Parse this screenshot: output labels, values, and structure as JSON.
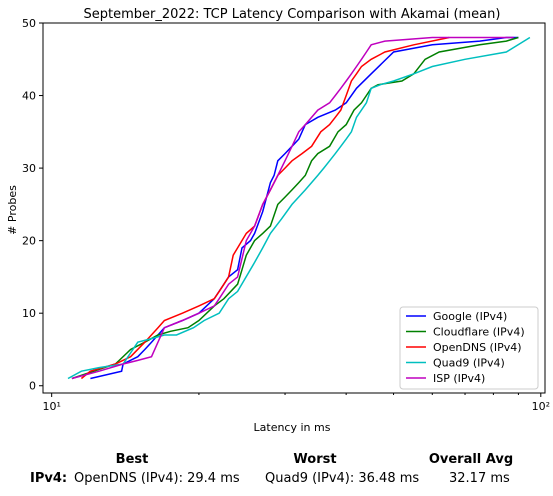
{
  "chart_data": {
    "type": "line",
    "title": "September_2022: TCP Latency Comparison with Akamai (mean)",
    "xlabel": "Latency in ms",
    "ylabel": "# Probes",
    "xscale": "log",
    "xlim": [
      9.6,
      102
    ],
    "ylim": [
      -1,
      50
    ],
    "xticks": [
      {
        "value": 10,
        "label": "10¹"
      },
      {
        "value": 100,
        "label": "10²"
      }
    ],
    "yticks": [
      0,
      10,
      20,
      30,
      40,
      50
    ],
    "grid": false,
    "legend_position": "bottom-right",
    "series": [
      {
        "name": "Google (IPv4)",
        "color": "#0000ff",
        "x": [
          12.0,
          13.9,
          14.0,
          15.0,
          15.5,
          16.0,
          17.0,
          18.5,
          20.0,
          21.5,
          22.5,
          23.0,
          24.0,
          24.5,
          25.5,
          26.0,
          27.0,
          27.5,
          28.0,
          28.5,
          29.0,
          30.0,
          31.0,
          32.0,
          33.0,
          35.0,
          38.0,
          40.0,
          42.0,
          45.0,
          50.0,
          60.0,
          75.0,
          85.0,
          90.0
        ],
        "y": [
          1,
          2,
          3,
          4,
          5,
          6,
          8,
          9,
          10,
          12,
          14,
          15,
          16,
          19,
          20,
          21,
          24,
          26,
          28,
          29,
          31,
          32,
          33,
          34,
          36,
          37,
          38,
          39,
          41,
          43,
          46,
          47,
          47.5,
          48,
          48
        ]
      },
      {
        "name": "Cloudflare (IPv4)",
        "color": "#008000",
        "x": [
          11.0,
          13.5,
          14.5,
          15.5,
          16.5,
          17.5,
          19.0,
          20.0,
          21.5,
          22.5,
          24.0,
          24.5,
          25.0,
          26.0,
          27.0,
          28.0,
          29.0,
          30.0,
          31.0,
          32.0,
          33.0,
          34.0,
          35.0,
          37.0,
          38.5,
          40.0,
          41.5,
          43.0,
          44.0,
          45.0,
          46.5,
          52.0,
          55.0,
          58.0,
          62.0,
          75.0,
          85.0,
          90.0
        ],
        "y": [
          1,
          3,
          5,
          6,
          7,
          7.5,
          8,
          9,
          11,
          12,
          14,
          16,
          18,
          20,
          21,
          22,
          25,
          26,
          27,
          28,
          29,
          31,
          32,
          33,
          35,
          36,
          38,
          39,
          40,
          41,
          41.5,
          42,
          43,
          45,
          46,
          47,
          47.5,
          48
        ]
      },
      {
        "name": "OpenDNS (IPv4)",
        "color": "#ff0000",
        "x": [
          11.5,
          12.0,
          13.5,
          14.5,
          15.5,
          16.5,
          17.0,
          18.5,
          20.0,
          21.5,
          22.0,
          23.0,
          23.5,
          24.0,
          25.0,
          26.0,
          27.0,
          28.0,
          29.0,
          30.0,
          31.0,
          32.5,
          34.0,
          35.5,
          37.0,
          38.0,
          39.0,
          40.0,
          41.0,
          42.0,
          43.0,
          45.0,
          48.0,
          55.0,
          65.0
        ],
        "y": [
          1,
          2,
          3,
          4,
          6,
          8,
          9,
          10,
          11,
          12,
          13,
          15,
          18,
          19,
          21,
          22,
          25,
          27,
          29,
          30,
          31,
          32,
          33,
          35,
          36,
          37,
          38,
          40,
          42,
          43,
          44,
          45,
          46,
          47,
          48
        ]
      },
      {
        "name": "Quad9 (IPv4)",
        "color": "#00bfbf",
        "x": [
          10.8,
          11.5,
          12.5,
          14.0,
          15.0,
          16.0,
          17.0,
          18.0,
          19.5,
          20.5,
          22.0,
          23.0,
          24.0,
          26.0,
          27.0,
          28.0,
          29.5,
          31.0,
          33.0,
          35.0,
          36.0,
          37.0,
          38.0,
          39.0,
          40.0,
          41.0,
          42.0,
          44.0,
          45.0,
          47.0,
          50.0,
          55.0,
          60.0,
          70.0,
          85.0,
          95.0
        ],
        "y": [
          1,
          2,
          2.5,
          3,
          6,
          6.5,
          7,
          7,
          8,
          9,
          10,
          12,
          13,
          17,
          19,
          21,
          23,
          25,
          27,
          29,
          30,
          31,
          32,
          33,
          34,
          35,
          37,
          39,
          41,
          41.5,
          42,
          43,
          44,
          45,
          46,
          48
        ]
      },
      {
        "name": "ISP (IPv4)",
        "color": "#bf00bf",
        "x": [
          11.0,
          12.5,
          14.0,
          15.0,
          16.0,
          17.0,
          18.5,
          20.0,
          21.5,
          22.0,
          23.0,
          24.0,
          25.0,
          26.0,
          27.0,
          28.0,
          29.0,
          30.0,
          31.0,
          32.0,
          33.0,
          35.0,
          37.0,
          38.0,
          39.0,
          40.0,
          41.0,
          42.0,
          43.0,
          44.0,
          45.0,
          48.0,
          60.0,
          80.0,
          88.0
        ],
        "y": [
          1,
          2,
          3,
          3.5,
          4,
          8,
          9,
          10,
          11,
          12,
          14,
          15,
          20,
          22,
          25,
          27,
          29,
          31,
          33,
          35,
          36,
          38,
          39,
          40,
          41,
          42,
          43,
          44,
          45,
          46,
          47,
          47.5,
          48,
          48,
          48
        ]
      }
    ]
  },
  "summary": {
    "best_header": "Best",
    "worst_header": "Worst",
    "avg_header": "Overall Avg",
    "row_label": "IPv4:",
    "best_value": "OpenDNS (IPv4): 29.4 ms",
    "worst_value": "Quad9 (IPv4): 36.48 ms",
    "avg_value": "32.17 ms"
  }
}
